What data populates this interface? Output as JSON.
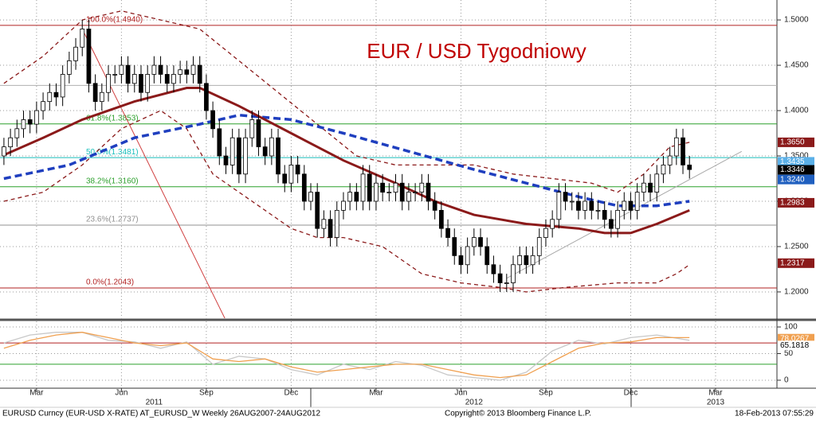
{
  "chart_data": [
    {
      "type": "candlestick",
      "title": "EUR / USD Tygodniowy",
      "title_color": "#c00000",
      "xlim": [
        -0.6,
        118.4
      ],
      "ylim": [
        1.171,
        1.522
      ],
      "yticks": [
        {
          "value": 1.2,
          "label": "1.2000"
        },
        {
          "value": 1.25,
          "label": "1.2500"
        },
        {
          "value": 1.3,
          "label": "1.3000"
        },
        {
          "value": 1.35,
          "label": "1.3500"
        },
        {
          "value": 1.4,
          "label": "1.4000"
        },
        {
          "value": 1.45,
          "label": "1.4500"
        },
        {
          "value": 1.5,
          "label": "1.5000"
        }
      ],
      "grid": true,
      "x": [
        0,
        1,
        2,
        3,
        4,
        5,
        6,
        7,
        8,
        9,
        10,
        11,
        12,
        13,
        14,
        15,
        16,
        17,
        18,
        19,
        20,
        21,
        22,
        23,
        24,
        25,
        26,
        27,
        28,
        29,
        30,
        31,
        32,
        33,
        34,
        35,
        36,
        37,
        38,
        39,
        40,
        41,
        42,
        43,
        44,
        45,
        46,
        47,
        48,
        49,
        50,
        51,
        52,
        53,
        54,
        55,
        56,
        57,
        58,
        59,
        60,
        61,
        62,
        63,
        64,
        65,
        66,
        67,
        68,
        69,
        70,
        71,
        72,
        73,
        74,
        75,
        76,
        77,
        78,
        79,
        80,
        81,
        82,
        83,
        84,
        85,
        86,
        87,
        88,
        89,
        90,
        91,
        92,
        93,
        94,
        95,
        96,
        97,
        98,
        99,
        100,
        101,
        102,
        103,
        104,
        105
      ],
      "open": [
        1.35,
        1.36,
        1.37,
        1.38,
        1.39,
        1.385,
        1.4,
        1.41,
        1.42,
        1.415,
        1.44,
        1.455,
        1.47,
        1.49,
        1.43,
        1.41,
        1.42,
        1.44,
        1.44,
        1.45,
        1.43,
        1.44,
        1.42,
        1.44,
        1.45,
        1.44,
        1.43,
        1.44,
        1.445,
        1.44,
        1.45,
        1.43,
        1.4,
        1.38,
        1.35,
        1.34,
        1.37,
        1.33,
        1.37,
        1.39,
        1.36,
        1.35,
        1.37,
        1.33,
        1.32,
        1.34,
        1.33,
        1.3,
        1.31,
        1.27,
        1.28,
        1.26,
        1.29,
        1.3,
        1.31,
        1.3,
        1.33,
        1.3,
        1.32,
        1.31,
        1.31,
        1.32,
        1.3,
        1.31,
        1.31,
        1.32,
        1.3,
        1.29,
        1.27,
        1.26,
        1.24,
        1.23,
        1.25,
        1.26,
        1.25,
        1.23,
        1.22,
        1.21,
        1.21,
        1.23,
        1.24,
        1.23,
        1.24,
        1.26,
        1.27,
        1.28,
        1.31,
        1.3,
        1.3,
        1.29,
        1.3,
        1.29,
        1.29,
        1.28,
        1.27,
        1.29,
        1.3,
        1.29,
        1.31,
        1.32,
        1.31,
        1.33,
        1.34,
        1.35,
        1.37,
        1.34
      ],
      "high": [
        1.37,
        1.38,
        1.39,
        1.4,
        1.4,
        1.41,
        1.42,
        1.43,
        1.43,
        1.45,
        1.465,
        1.48,
        1.5,
        1.5,
        1.44,
        1.43,
        1.45,
        1.45,
        1.46,
        1.46,
        1.45,
        1.45,
        1.45,
        1.46,
        1.46,
        1.45,
        1.45,
        1.455,
        1.455,
        1.46,
        1.46,
        1.44,
        1.41,
        1.39,
        1.36,
        1.38,
        1.38,
        1.38,
        1.4,
        1.4,
        1.37,
        1.38,
        1.38,
        1.34,
        1.35,
        1.35,
        1.34,
        1.32,
        1.32,
        1.29,
        1.29,
        1.3,
        1.31,
        1.32,
        1.32,
        1.34,
        1.34,
        1.33,
        1.33,
        1.32,
        1.33,
        1.33,
        1.32,
        1.32,
        1.33,
        1.33,
        1.31,
        1.3,
        1.28,
        1.27,
        1.25,
        1.26,
        1.27,
        1.27,
        1.26,
        1.24,
        1.23,
        1.22,
        1.24,
        1.25,
        1.25,
        1.25,
        1.27,
        1.28,
        1.29,
        1.32,
        1.32,
        1.31,
        1.31,
        1.31,
        1.31,
        1.3,
        1.3,
        1.29,
        1.3,
        1.31,
        1.31,
        1.32,
        1.33,
        1.33,
        1.34,
        1.35,
        1.36,
        1.38,
        1.38,
        1.35
      ],
      "low": [
        1.34,
        1.35,
        1.36,
        1.37,
        1.375,
        1.375,
        1.39,
        1.4,
        1.405,
        1.405,
        1.43,
        1.445,
        1.46,
        1.42,
        1.4,
        1.4,
        1.41,
        1.43,
        1.43,
        1.42,
        1.42,
        1.41,
        1.41,
        1.43,
        1.43,
        1.42,
        1.42,
        1.43,
        1.43,
        1.43,
        1.42,
        1.39,
        1.37,
        1.34,
        1.33,
        1.33,
        1.32,
        1.32,
        1.36,
        1.35,
        1.34,
        1.34,
        1.32,
        1.31,
        1.31,
        1.32,
        1.29,
        1.29,
        1.26,
        1.26,
        1.25,
        1.25,
        1.28,
        1.29,
        1.29,
        1.29,
        1.29,
        1.29,
        1.3,
        1.3,
        1.3,
        1.29,
        1.29,
        1.3,
        1.3,
        1.29,
        1.28,
        1.26,
        1.25,
        1.23,
        1.22,
        1.22,
        1.24,
        1.24,
        1.22,
        1.21,
        1.2,
        1.2,
        1.2,
        1.22,
        1.22,
        1.22,
        1.23,
        1.25,
        1.26,
        1.27,
        1.29,
        1.29,
        1.28,
        1.28,
        1.28,
        1.28,
        1.27,
        1.26,
        1.26,
        1.28,
        1.28,
        1.28,
        1.3,
        1.3,
        1.3,
        1.32,
        1.33,
        1.34,
        1.33,
        1.325
      ],
      "close": [
        1.36,
        1.37,
        1.38,
        1.39,
        1.385,
        1.4,
        1.41,
        1.42,
        1.415,
        1.44,
        1.455,
        1.47,
        1.49,
        1.43,
        1.41,
        1.42,
        1.44,
        1.44,
        1.45,
        1.43,
        1.44,
        1.42,
        1.44,
        1.45,
        1.44,
        1.43,
        1.44,
        1.445,
        1.44,
        1.45,
        1.43,
        1.4,
        1.38,
        1.35,
        1.34,
        1.37,
        1.33,
        1.37,
        1.39,
        1.36,
        1.35,
        1.37,
        1.33,
        1.32,
        1.34,
        1.33,
        1.3,
        1.31,
        1.27,
        1.28,
        1.26,
        1.29,
        1.3,
        1.31,
        1.3,
        1.33,
        1.3,
        1.32,
        1.31,
        1.31,
        1.32,
        1.3,
        1.31,
        1.31,
        1.32,
        1.3,
        1.29,
        1.27,
        1.26,
        1.24,
        1.23,
        1.25,
        1.26,
        1.25,
        1.23,
        1.22,
        1.21,
        1.21,
        1.23,
        1.24,
        1.23,
        1.24,
        1.26,
        1.27,
        1.28,
        1.31,
        1.3,
        1.3,
        1.29,
        1.3,
        1.29,
        1.29,
        1.28,
        1.27,
        1.29,
        1.3,
        1.29,
        1.31,
        1.32,
        1.31,
        1.33,
        1.34,
        1.35,
        1.37,
        1.34,
        1.335
      ],
      "series": [
        {
          "name": "Bollinger upper",
          "color": "#8b1a1a",
          "style": "dashed",
          "x": [
            0,
            6,
            12,
            18,
            24,
            30,
            36,
            42,
            48,
            54,
            60,
            66,
            72,
            78,
            84,
            90,
            94,
            98,
            102,
            105
          ],
          "values": [
            1.43,
            1.46,
            1.5,
            1.51,
            1.5,
            1.49,
            1.455,
            1.42,
            1.385,
            1.35,
            1.34,
            1.34,
            1.34,
            1.33,
            1.325,
            1.32,
            1.31,
            1.33,
            1.36,
            1.365
          ]
        },
        {
          "name": "Bollinger lower",
          "color": "#8b1a1a",
          "style": "dashed",
          "x": [
            0,
            6,
            12,
            18,
            24,
            28,
            32,
            38,
            44,
            48,
            52,
            58,
            64,
            70,
            76,
            80,
            86,
            94,
            100,
            103,
            105
          ],
          "values": [
            1.3,
            1.31,
            1.34,
            1.38,
            1.4,
            1.38,
            1.33,
            1.3,
            1.27,
            1.26,
            1.26,
            1.25,
            1.22,
            1.21,
            1.205,
            1.2,
            1.205,
            1.21,
            1.21,
            1.22,
            1.23
          ]
        },
        {
          "name": "MA slow",
          "color": "#1f3fbf",
          "style": "thick-dashed",
          "x": [
            0,
            10,
            20,
            30,
            36,
            44,
            52,
            62,
            72,
            80,
            88,
            94,
            100,
            105
          ],
          "values": [
            1.325,
            1.34,
            1.37,
            1.385,
            1.395,
            1.39,
            1.375,
            1.355,
            1.335,
            1.32,
            1.305,
            1.295,
            1.295,
            1.3
          ]
        },
        {
          "name": "MA medium",
          "color": "#8b1a1a",
          "style": "thick",
          "x": [
            0,
            6,
            12,
            20,
            28,
            30,
            36,
            44,
            52,
            60,
            66,
            72,
            80,
            88,
            92,
            96,
            100,
            105
          ],
          "values": [
            1.351,
            1.37,
            1.39,
            1.41,
            1.425,
            1.425,
            1.405,
            1.375,
            1.345,
            1.32,
            1.3,
            1.285,
            1.275,
            1.27,
            1.265,
            1.265,
            1.275,
            1.29
          ]
        }
      ],
      "segments": [
        {
          "color": "#d04040",
          "x": [
            12,
            38
          ],
          "y": [
            1.49,
            1.11
          ]
        },
        {
          "color": "#a8a8a8",
          "x": [
            77,
            113
          ],
          "y": [
            1.215,
            1.355
          ]
        }
      ],
      "levels": [
        {
          "value": 1.494,
          "label": "100.0%(1.4940)",
          "color": "#b22222"
        },
        {
          "value": 1.4278,
          "color": "#b0b0b0"
        },
        {
          "value": 1.3853,
          "label": "61.8%(1.3853)",
          "color": "#2ca02c"
        },
        {
          "value": 1.3481,
          "label": "50.0%(1.3481)",
          "color": "#17bebb"
        },
        {
          "value": 1.316,
          "label": "38.2%(1.3160)",
          "color": "#2ca02c"
        },
        {
          "value": 1.2737,
          "label": "23.6%(1.2737)",
          "color": "#909090"
        },
        {
          "value": 1.2043,
          "label": "0.0%(1.2043)",
          "color": "#b22222"
        }
      ],
      "tags": [
        {
          "value": 1.365,
          "label": "1.3650",
          "color": "#8b1a1a"
        },
        {
          "value": 1.3435,
          "label": "1.3435",
          "color": "#5bb0e8"
        },
        {
          "value": 1.3346,
          "label": "1.3346",
          "color": "#000000"
        },
        {
          "value": 1.324,
          "label": "1.3240",
          "color": "#1f5fbf"
        },
        {
          "value": 1.2983,
          "label": "1.2983",
          "color": "#8b1a1a"
        },
        {
          "value": 1.2317,
          "label": "1.2317",
          "color": "#8b1a1a"
        }
      ]
    },
    {
      "type": "line",
      "xlim": [
        -0.6,
        118.4
      ],
      "ylim": [
        -15,
        109
      ],
      "yticks": [
        0,
        50,
        100
      ],
      "xticks": [
        {
          "value": 5,
          "label": "Mar"
        },
        {
          "value": 18,
          "label": "Jun"
        },
        {
          "value": 31,
          "label": "Sep"
        },
        {
          "value": 44,
          "label": "Dec"
        },
        {
          "value": 57,
          "label": "Mar"
        },
        {
          "value": 70,
          "label": "Jun"
        },
        {
          "value": 83,
          "label": "Sep"
        },
        {
          "value": 96,
          "label": "Dec"
        },
        {
          "value": 109,
          "label": "Mar"
        }
      ],
      "year_labels": [
        {
          "value": 23,
          "label": "2011"
        },
        {
          "value": 72,
          "label": "2012"
        },
        {
          "value": 109,
          "label": "2013"
        }
      ],
      "series": [
        {
          "name": "signal",
          "color": "#c8c8c8",
          "style": "solid",
          "x": [
            0,
            4,
            8,
            12,
            16,
            20,
            24,
            28,
            32,
            36,
            40,
            44,
            48,
            52,
            56,
            60,
            64,
            68,
            72,
            76,
            80,
            84,
            88,
            92,
            96,
            100,
            105
          ],
          "values": [
            70,
            85,
            90,
            90,
            75,
            72,
            60,
            72,
            30,
            45,
            40,
            20,
            10,
            30,
            20,
            35,
            28,
            10,
            5,
            0,
            15,
            55,
            75,
            68,
            80,
            85,
            75
          ]
        },
        {
          "name": "RSI",
          "color": "#f0a050",
          "style": "solid",
          "x": [
            0,
            4,
            8,
            12,
            16,
            20,
            24,
            28,
            32,
            36,
            40,
            44,
            48,
            52,
            56,
            60,
            64,
            68,
            72,
            76,
            80,
            84,
            88,
            92,
            96,
            100,
            105
          ],
          "values": [
            60,
            75,
            85,
            90,
            80,
            70,
            65,
            70,
            40,
            35,
            40,
            25,
            15,
            20,
            25,
            30,
            30,
            20,
            10,
            5,
            10,
            35,
            60,
            70,
            72,
            80,
            80
          ]
        }
      ],
      "levels": [
        {
          "value": 70,
          "color": "#b22222"
        },
        {
          "value": 30,
          "color": "#2ca02c"
        }
      ],
      "tags": [
        {
          "value": 78.0267,
          "label": "78.0267",
          "color": "#f0a050"
        },
        {
          "value": 65.1818,
          "label": "65.1818",
          "color": "#ffffff"
        }
      ]
    }
  ],
  "footer": {
    "left": "EURUSD Curncy (EUR-USD X-RATE) AT_EURUSD_W  Weekly 26AUG2007-24AUG2012",
    "center": "Copyright© 2013 Bloomberg Finance L.P.",
    "right": "18-Feb-2013 07:55:29"
  }
}
